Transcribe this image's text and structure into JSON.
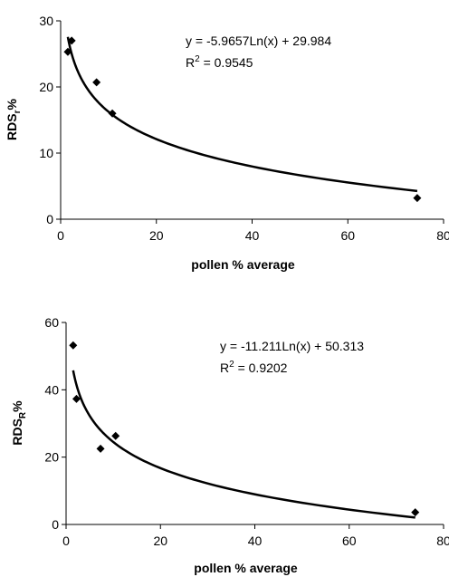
{
  "chart_data": [
    {
      "type": "scatter",
      "xlabel": "pollen % average",
      "ylabel": {
        "main": "RDS",
        "sub": "r",
        "tail": "%"
      },
      "xlim": [
        0,
        80
      ],
      "ylim": [
        0,
        30
      ],
      "xticks": [
        0,
        20,
        40,
        60,
        80
      ],
      "yticks": [
        0,
        10,
        20,
        30
      ],
      "grid": false,
      "points": [
        {
          "x": 1.5,
          "y": 25.3
        },
        {
          "x": 2.3,
          "y": 27.0
        },
        {
          "x": 7.5,
          "y": 20.7
        },
        {
          "x": 10.8,
          "y": 16.0
        },
        {
          "x": 74.5,
          "y": 3.2
        }
      ],
      "trendline": {
        "type": "log",
        "a": -5.9657,
        "b": 29.984,
        "x_start": 1.5,
        "x_end": 74.5
      },
      "equation": "y = -5.9657Ln(x) + 29.984",
      "r2": {
        "label": "R",
        "sup": "2",
        "value": "  =  0.9545"
      }
    },
    {
      "type": "scatter",
      "xlabel": "pollen % average",
      "ylabel": {
        "main": "RDS",
        "sub": "R",
        "tail": "%"
      },
      "xlim": [
        0,
        80
      ],
      "ylim": [
        0,
        60
      ],
      "xticks": [
        0,
        20,
        40,
        60,
        80
      ],
      "yticks": [
        0,
        20,
        40,
        60
      ],
      "grid": false,
      "points": [
        {
          "x": 1.5,
          "y": 53.2
        },
        {
          "x": 2.2,
          "y": 37.3
        },
        {
          "x": 7.3,
          "y": 22.5
        },
        {
          "x": 10.5,
          "y": 26.3
        },
        {
          "x": 74.0,
          "y": 3.6
        }
      ],
      "trendline": {
        "type": "log",
        "a": -11.211,
        "b": 50.313,
        "x_start": 1.5,
        "x_end": 74.0
      },
      "equation": "y = -11.211Ln(x) + 50.313",
      "r2": {
        "label": "R",
        "sup": "2",
        "value": " = 0.9202"
      }
    }
  ]
}
